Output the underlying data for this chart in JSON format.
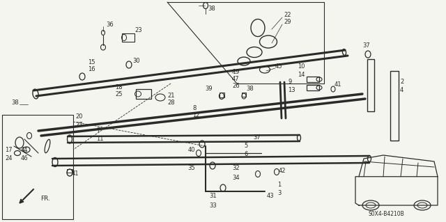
{
  "bg": "#f5f5f0",
  "lc": "#2a2a2a",
  "figsize": [
    6.4,
    3.19
  ],
  "dpi": 100,
  "diagram_code": "S0X4-B4210B"
}
